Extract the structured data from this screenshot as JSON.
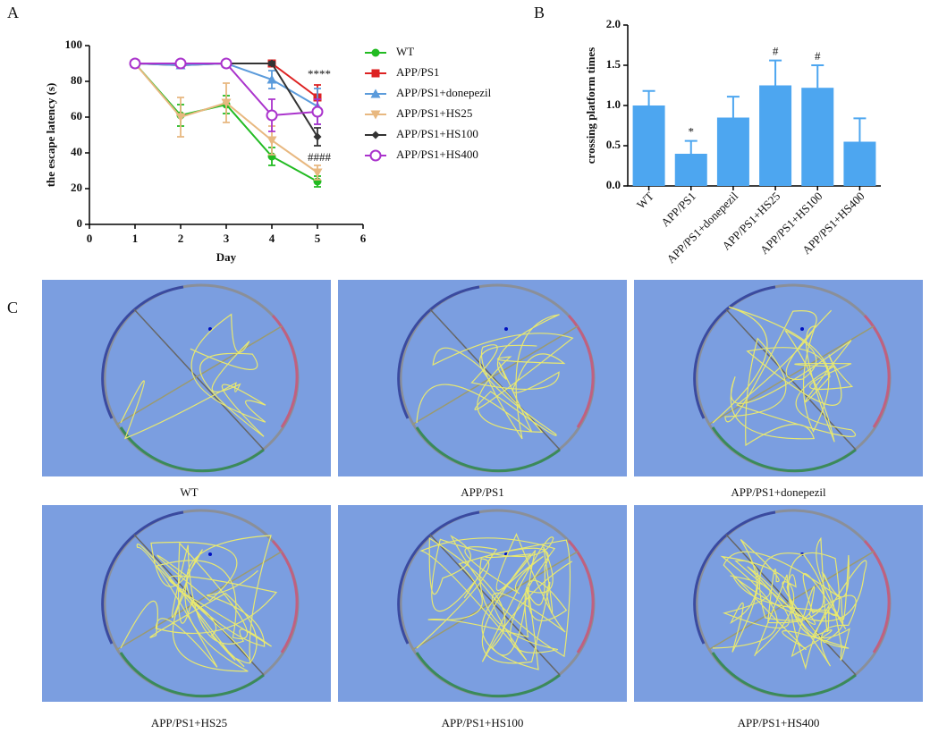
{
  "chart_data": [
    {
      "type": "line",
      "panel_label": "A",
      "xlabel": "Day",
      "ylabel": "the escape latency (s)",
      "x": [
        1,
        2,
        3,
        4,
        5
      ],
      "xlim": [
        0,
        6
      ],
      "xticks": [
        0,
        1,
        2,
        3,
        4,
        5,
        6
      ],
      "ylim": [
        0,
        100
      ],
      "yticks": [
        0,
        20,
        40,
        60,
        80,
        100
      ],
      "series": [
        {
          "name": "WT",
          "color": "#22bb22",
          "marker": "circle",
          "values": [
            90,
            61,
            67,
            38,
            24
          ],
          "errors": [
            0,
            6,
            5,
            5,
            3
          ]
        },
        {
          "name": "APP/PS1",
          "color": "#dd2222",
          "marker": "square",
          "values": [
            90,
            89,
            90,
            90,
            71
          ],
          "errors": [
            0,
            1,
            1,
            1,
            7
          ]
        },
        {
          "name": "APP/PS1+donepezil",
          "color": "#5b9bdb",
          "marker": "triangle-up",
          "values": [
            90,
            89,
            90,
            81,
            66
          ],
          "errors": [
            0,
            1,
            1,
            5,
            10
          ]
        },
        {
          "name": "APP/PS1+HS25",
          "color": "#e8b880",
          "marker": "triangle-down",
          "values": [
            90,
            60,
            68,
            47,
            29
          ],
          "errors": [
            0,
            11,
            11,
            8,
            4
          ]
        },
        {
          "name": "APP/PS1+HS100",
          "color": "#333333",
          "marker": "diamond",
          "values": [
            90,
            90,
            90,
            90,
            49
          ],
          "errors": [
            0,
            1,
            1,
            1,
            5
          ]
        },
        {
          "name": "APP/PS1+HS400",
          "color": "#aa33cc",
          "marker": "open-circle",
          "values": [
            90,
            90,
            90,
            61,
            63
          ],
          "errors": [
            0,
            1,
            1,
            9,
            7
          ]
        }
      ],
      "annotations": [
        "****",
        "####"
      ]
    },
    {
      "type": "bar",
      "panel_label": "B",
      "ylabel": "crossing platform times",
      "categories": [
        "WT",
        "APP/PS1",
        "APP/PS1+donepezil",
        "APP/PS1+HS25",
        "APP/PS1+HS100",
        "APP/PS1+HS400"
      ],
      "values": [
        1.0,
        0.4,
        0.85,
        1.25,
        1.22,
        0.55
      ],
      "errors": [
        0.18,
        0.16,
        0.26,
        0.31,
        0.28,
        0.29
      ],
      "markers_above": [
        null,
        "*",
        null,
        "#",
        "#",
        null
      ],
      "color": "#4da6f0",
      "ylim": [
        0,
        2
      ],
      "yticks": [
        {
          "value": 0,
          "label": "0.0"
        },
        {
          "value": 0.5,
          "label": "0.5"
        },
        {
          "value": 1,
          "label": "1.0"
        },
        {
          "value": 1.5,
          "label": "1.5"
        },
        {
          "value": 2,
          "label": "2.0"
        }
      ]
    }
  ],
  "images": {
    "panel_label": "C",
    "captions": [
      "WT",
      "APP/PS1",
      "APP/PS1+donepezil",
      "APP/PS1+HS25",
      "APP/PS1+HS100",
      "APP/PS1+HS400"
    ]
  }
}
